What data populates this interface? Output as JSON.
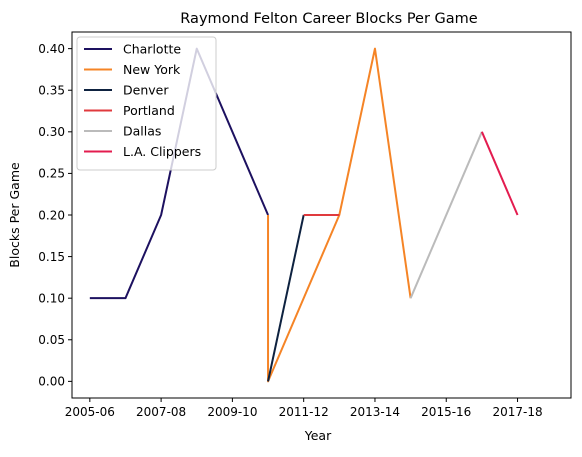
{
  "chart_data": {
    "type": "line",
    "title": "Raymond Felton Career Blocks Per Game",
    "xlabel": "Year",
    "ylabel": "Blocks Per Game",
    "xlim": [
      2004.5,
      2018.5
    ],
    "ylim": [
      -0.02,
      0.42
    ],
    "x_ticks": [
      {
        "value": 2005,
        "label": "2005-06"
      },
      {
        "value": 2007,
        "label": "2007-08"
      },
      {
        "value": 2009,
        "label": "2009-10"
      },
      {
        "value": 2011,
        "label": "2011-12"
      },
      {
        "value": 2013,
        "label": "2013-14"
      },
      {
        "value": 2015,
        "label": "2015-16"
      },
      {
        "value": 2017,
        "label": "2017-18"
      }
    ],
    "y_ticks": [
      {
        "value": 0.0,
        "label": "0.00"
      },
      {
        "value": 0.05,
        "label": "0.05"
      },
      {
        "value": 0.1,
        "label": "0.10"
      },
      {
        "value": 0.15,
        "label": "0.15"
      },
      {
        "value": 0.2,
        "label": "0.20"
      },
      {
        "value": 0.25,
        "label": "0.25"
      },
      {
        "value": 0.3,
        "label": "0.30"
      },
      {
        "value": 0.35,
        "label": "0.35"
      },
      {
        "value": 0.4,
        "label": "0.40"
      }
    ],
    "grid": false,
    "legend_position": "top-left",
    "series": [
      {
        "name": "Charlotte",
        "color": "#1d1160",
        "x": [
          2005,
          2006,
          2007,
          2008,
          2010
        ],
        "y": [
          0.1,
          0.1,
          0.2,
          0.4,
          0.2
        ]
      },
      {
        "name": "New York",
        "color": "#f58426",
        "x": [
          2010,
          2010,
          2012,
          2013,
          2014
        ],
        "y": [
          0.2,
          0.0,
          0.2,
          0.4,
          0.1
        ]
      },
      {
        "name": "Denver",
        "color": "#0e2240",
        "x": [
          2010,
          2011
        ],
        "y": [
          0.0,
          0.2
        ]
      },
      {
        "name": "Portland",
        "color": "#e03a3e",
        "x": [
          2011,
          2012
        ],
        "y": [
          0.2,
          0.2
        ]
      },
      {
        "name": "Dallas",
        "color": "#bbbbbb",
        "x": [
          2014,
          2016
        ],
        "y": [
          0.1,
          0.3
        ]
      },
      {
        "name": "L.A. Clippers",
        "color": "#e31c4f",
        "x": [
          2016,
          2017
        ],
        "y": [
          0.3,
          0.2
        ]
      }
    ]
  }
}
